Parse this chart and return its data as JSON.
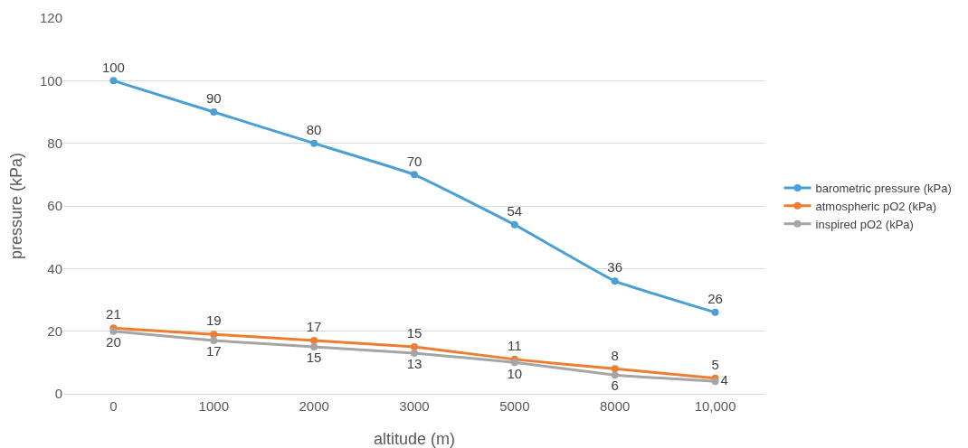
{
  "chart_data": {
    "type": "line",
    "xlabel": "altitude (m)",
    "ylabel": "pressure (kPa)",
    "categories": [
      "0",
      "1000",
      "2000",
      "3000",
      "5000",
      "8000",
      "10,000"
    ],
    "series": [
      {
        "name": "barometric pressure (kPa)",
        "color": "#4a9fd5",
        "values": [
          100,
          90,
          80,
          70,
          54,
          36,
          26
        ]
      },
      {
        "name": "atmospheric pO2 (kPa)",
        "color": "#ed7d31",
        "values": [
          21,
          19,
          17,
          15,
          11,
          8,
          5
        ]
      },
      {
        "name": "inspired pO2 (kPa)",
        "color": "#a5a5a5",
        "values": [
          20,
          17,
          15,
          13,
          10,
          6,
          4
        ]
      }
    ],
    "ylim": [
      0,
      120
    ],
    "yticks": [
      0,
      20,
      40,
      60,
      80,
      100,
      120
    ],
    "grid": "y",
    "legend": "right",
    "marker": "circle",
    "line_style": "solid",
    "data_labels": true
  }
}
